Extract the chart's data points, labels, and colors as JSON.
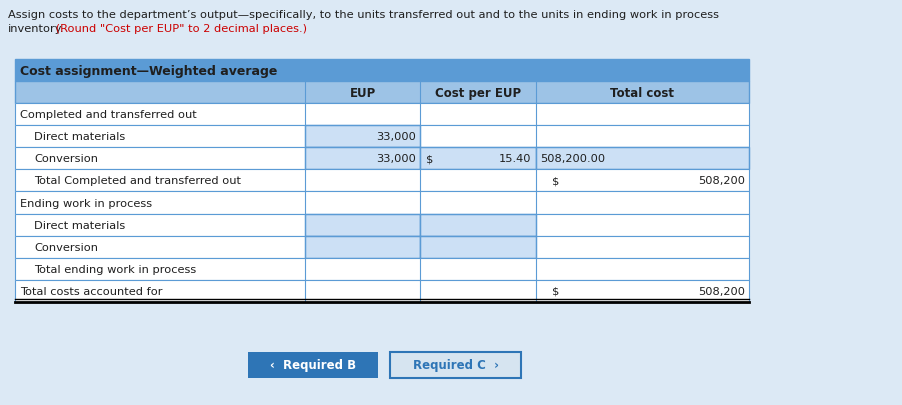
{
  "header_text_black1": "Assign costs to the department’s output—specifically, to the units transferred out and to the units in ending work in process",
  "header_text_black2": "inventory.",
  "header_text_red": " (Round \"Cost per EUP\" to 2 decimal places.)",
  "table_title": "Cost assignment—Weighted average",
  "col_headers": [
    "EUP",
    "Cost per EUP",
    "Total cost"
  ],
  "rows": [
    {
      "label": "Completed and transferred out",
      "indent": 0,
      "eup": "",
      "cost_per_eup_dollar": "",
      "cost_per_eup_val": "",
      "total_cost_dollar": "",
      "total_cost_val": "",
      "input_eup": false,
      "input_cpu": false,
      "input_tc": false
    },
    {
      "label": "Direct materials",
      "indent": 1,
      "eup": "33,000",
      "cost_per_eup_dollar": "",
      "cost_per_eup_val": "",
      "total_cost_dollar": "",
      "total_cost_val": "",
      "input_eup": true,
      "input_cpu": false,
      "input_tc": false
    },
    {
      "label": "Conversion",
      "indent": 1,
      "eup": "33,000",
      "cost_per_eup_dollar": "$",
      "cost_per_eup_val": "15.40",
      "total_cost_dollar": "",
      "total_cost_val": "508,200.00",
      "input_eup": true,
      "input_cpu": true,
      "input_tc": true
    },
    {
      "label": "Total Completed and transferred out",
      "indent": 1,
      "eup": "",
      "cost_per_eup_dollar": "",
      "cost_per_eup_val": "",
      "total_cost_dollar": "$",
      "total_cost_val": "508,200",
      "input_eup": false,
      "input_cpu": false,
      "input_tc": false
    },
    {
      "label": "Ending work in process",
      "indent": 0,
      "eup": "",
      "cost_per_eup_dollar": "",
      "cost_per_eup_val": "",
      "total_cost_dollar": "",
      "total_cost_val": "",
      "input_eup": false,
      "input_cpu": false,
      "input_tc": false
    },
    {
      "label": "Direct materials",
      "indent": 1,
      "eup": "",
      "cost_per_eup_dollar": "",
      "cost_per_eup_val": "",
      "total_cost_dollar": "",
      "total_cost_val": "",
      "input_eup": true,
      "input_cpu": true,
      "input_tc": false
    },
    {
      "label": "Conversion",
      "indent": 1,
      "eup": "",
      "cost_per_eup_dollar": "",
      "cost_per_eup_val": "",
      "total_cost_dollar": "",
      "total_cost_val": "",
      "input_eup": true,
      "input_cpu": true,
      "input_tc": false
    },
    {
      "label": "Total ending work in process",
      "indent": 1,
      "eup": "",
      "cost_per_eup_dollar": "",
      "cost_per_eup_val": "",
      "total_cost_dollar": "",
      "total_cost_val": "",
      "input_eup": false,
      "input_cpu": false,
      "input_tc": false
    },
    {
      "label": "Total costs accounted for",
      "indent": 0,
      "eup": "",
      "cost_per_eup_dollar": "",
      "cost_per_eup_val": "",
      "total_cost_dollar": "$",
      "total_cost_val": "508,200",
      "input_eup": false,
      "input_cpu": false,
      "input_tc": false
    }
  ],
  "bg_header": "#dce9f5",
  "bg_table_title": "#5b9bd5",
  "bg_col_header": "#9dc3e6",
  "bg_white": "#ffffff",
  "bg_input": "#cce0f5",
  "border": "#5b9bd5",
  "txt_black": "#1f1f1f",
  "txt_red": "#cc0000",
  "txt_blue": "#2e75b6",
  "btn1_label": "‹  Required B",
  "btn2_label": "Required C  ›",
  "btn1_bg": "#2e75b6",
  "btn2_bg": "#d6e4f0",
  "btn2_border": "#2e75b6",
  "fig_w": 9.03,
  "fig_h": 4.06,
  "dpi": 100
}
